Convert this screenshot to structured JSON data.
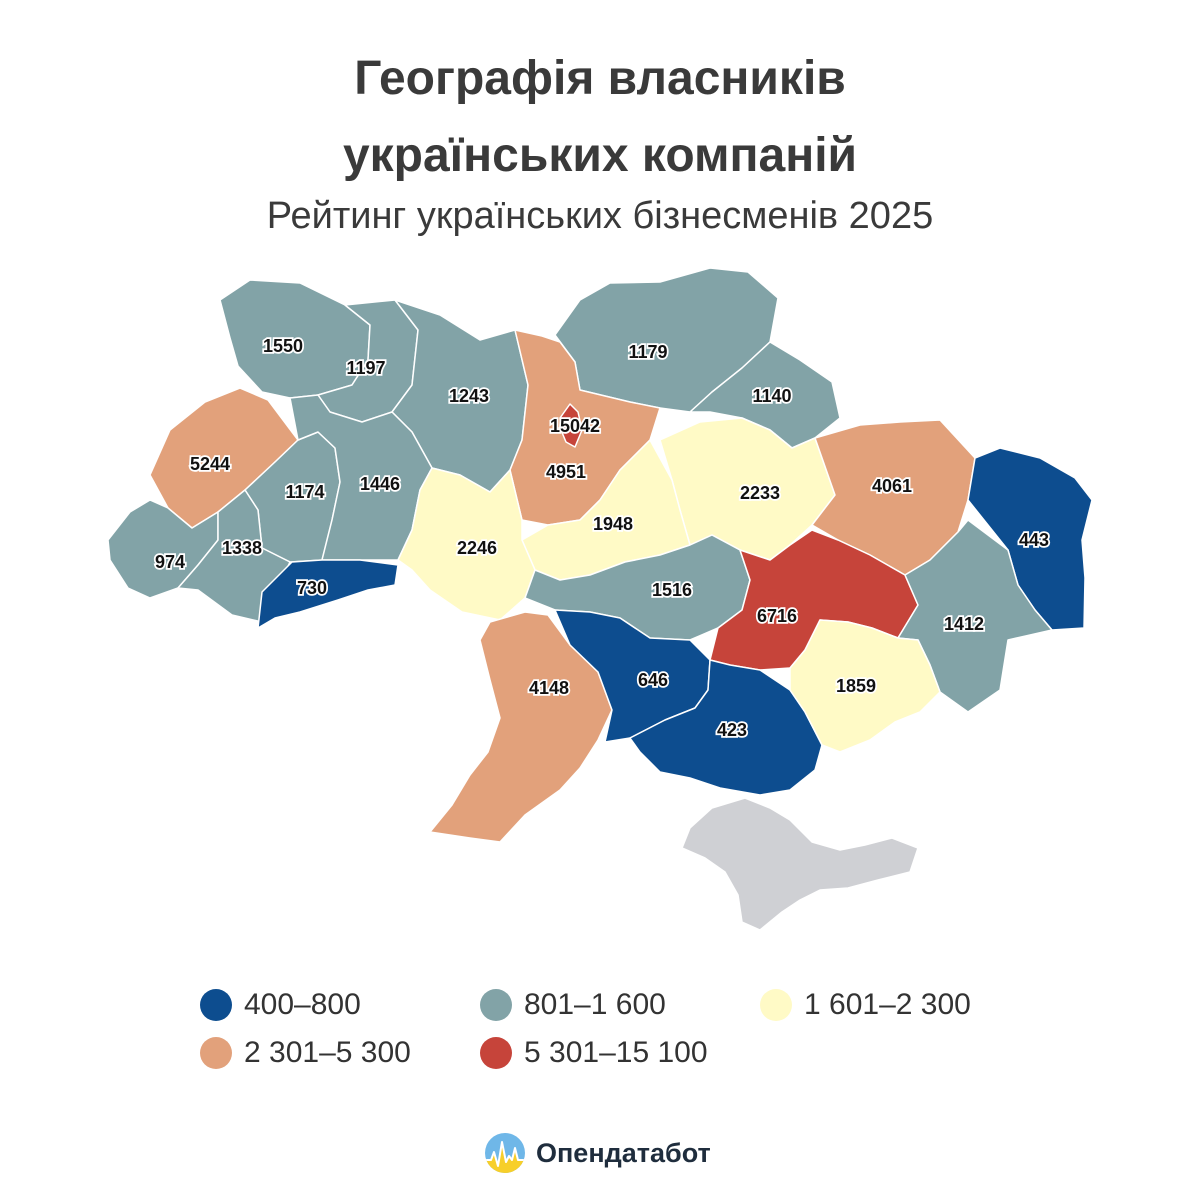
{
  "header": {
    "title_line1": "Географія власників",
    "title_line2": "українських компаній",
    "subtitle": "Рейтинг українських бізнесменів 2025"
  },
  "legend": [
    {
      "label": "400–800",
      "color": "#0d4d8f"
    },
    {
      "label": "801–1 600",
      "color": "#82a3a7"
    },
    {
      "label": "1 601–2 300",
      "color": "#fffac6"
    },
    {
      "label": "2 301–5 300",
      "color": "#e2a17b"
    },
    {
      "label": "5 301–15 100",
      "color": "#c6443a"
    }
  ],
  "regions": [
    {
      "key": "volyn",
      "value": "1550",
      "color": "#82a3a7"
    },
    {
      "key": "rivne",
      "value": "1197",
      "color": "#82a3a7"
    },
    {
      "key": "zhytomyr",
      "value": "1243",
      "color": "#82a3a7"
    },
    {
      "key": "chernihiv",
      "value": "1179",
      "color": "#82a3a7"
    },
    {
      "key": "sumy",
      "value": "1140",
      "color": "#82a3a7"
    },
    {
      "key": "lviv",
      "value": "5244",
      "color": "#e2a17b"
    },
    {
      "key": "kyiv_city",
      "value": "15042",
      "color": "#c6443a"
    },
    {
      "key": "kyiv_oblast",
      "value": "4951",
      "color": "#e2a17b"
    },
    {
      "key": "ternopil",
      "value": "1174",
      "color": "#82a3a7"
    },
    {
      "key": "khmelnytskyi",
      "value": "1446",
      "color": "#82a3a7"
    },
    {
      "key": "poltava",
      "value": "2233",
      "color": "#fffac6"
    },
    {
      "key": "kharkiv",
      "value": "4061",
      "color": "#e2a17b"
    },
    {
      "key": "luhansk",
      "value": "443",
      "color": "#0d4d8f"
    },
    {
      "key": "cherkasy",
      "value": "1948",
      "color": "#fffac6"
    },
    {
      "key": "vinnytsia",
      "value": "2246",
      "color": "#fffac6"
    },
    {
      "key": "zakarpattia",
      "value": "974",
      "color": "#82a3a7"
    },
    {
      "key": "ivano_frankivsk",
      "value": "1338",
      "color": "#82a3a7"
    },
    {
      "key": "chernivtsi",
      "value": "730",
      "color": "#0d4d8f"
    },
    {
      "key": "kirovohrad",
      "value": "1516",
      "color": "#82a3a7"
    },
    {
      "key": "dnipropetrovsk",
      "value": "6716",
      "color": "#c6443a"
    },
    {
      "key": "donetsk",
      "value": "1412",
      "color": "#82a3a7"
    },
    {
      "key": "odesa",
      "value": "4148",
      "color": "#e2a17b"
    },
    {
      "key": "mykolaiv",
      "value": "646",
      "color": "#0d4d8f"
    },
    {
      "key": "kherson",
      "value": "423",
      "color": "#0d4d8f"
    },
    {
      "key": "zaporizhzhia",
      "value": "1859",
      "color": "#fffac6"
    },
    {
      "key": "crimea",
      "value": "",
      "color": "#cfd0d4"
    }
  ],
  "brand": {
    "name": "Опендатабот",
    "logo_icon": "opendatabot-logo-icon"
  }
}
